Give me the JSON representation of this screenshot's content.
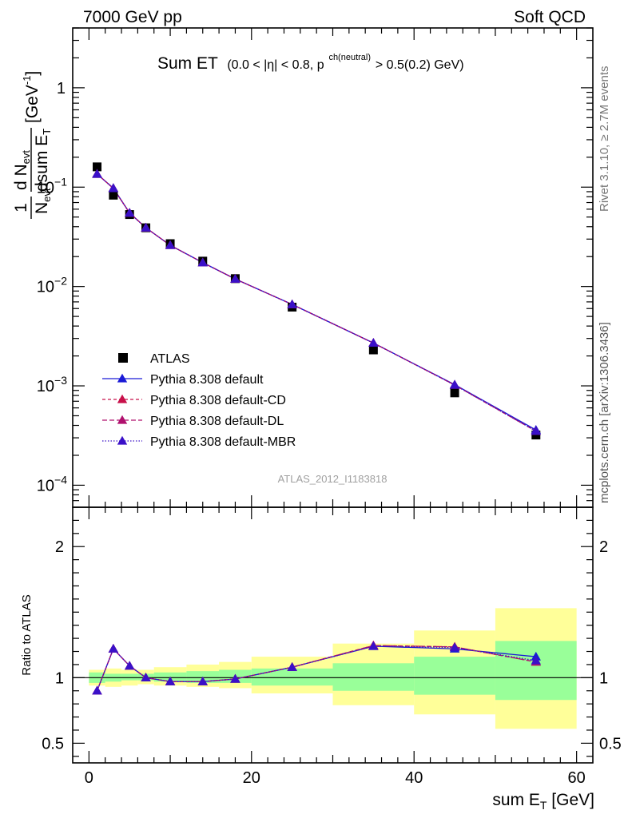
{
  "header": {
    "left": "7000 GeV pp",
    "right": "Soft QCD"
  },
  "side_labels": {
    "rivet": "Rivet 3.1.10, ≥ 2.7M events",
    "mcplots": "mcplots.cern.ch [arXiv:1306.3436]"
  },
  "plot_title": {
    "main": "Sum ET",
    "cuts_a": "(0.0 < |η| < 0.8, p",
    "cuts_sup": "ch(neutral)",
    "cuts_b": " > 0.5(0.2) GeV)"
  },
  "y_axis": {
    "frac_num_1": "1",
    "frac_den_1": "N",
    "frac_den_1_sub": "evt",
    "frac_num_2": "d N",
    "frac_num_2_sub": "evt",
    "frac_den_2": "dsum E",
    "frac_den_2_sub": "T",
    "unit": "[GeV",
    "unit_sup": "-1",
    "unit_close": "]"
  },
  "analysis_label": "ATLAS_2012_I1183818",
  "ratio_ylabel": "Ratio to ATLAS",
  "x_axis": {
    "label": "sum E",
    "label_sub": "T",
    "unit": " [GeV]"
  },
  "chart_data": [
    {
      "type": "scatter",
      "panel": "main",
      "xlabel": "sum E_T [GeV]",
      "ylabel": "1/N_evt dN_evt/dsum E_T [GeV^-1]",
      "xlim": [
        -2,
        62
      ],
      "ylim": [
        6e-05,
        4
      ],
      "y_scale": "log",
      "y_ticks": [
        {
          "value": 1,
          "label": "1"
        },
        {
          "value": 0.1,
          "base": "10",
          "exp": "−1"
        },
        {
          "value": 0.01,
          "base": "10",
          "exp": "−2"
        },
        {
          "value": 0.001,
          "base": "10",
          "exp": "−3"
        },
        {
          "value": 0.0001,
          "base": "10",
          "exp": "−4"
        }
      ],
      "legend_position": "lower-left",
      "series": [
        {
          "name": "ATLAS",
          "kind": "data",
          "color": "#000000",
          "x": [
            1,
            3,
            5,
            7,
            10,
            14,
            18,
            25,
            35,
            45,
            55
          ],
          "y": [
            0.16,
            0.083,
            0.053,
            0.039,
            0.027,
            0.018,
            0.012,
            0.0062,
            0.0023,
            0.00085,
            0.00032
          ]
        },
        {
          "name": "Pythia 8.308 default",
          "kind": "mc",
          "color": "#1a1ad6",
          "dash": "",
          "x": [
            1,
            3,
            5,
            7,
            10,
            14,
            18,
            25,
            35,
            45,
            55
          ],
          "y": [
            0.135,
            0.098,
            0.055,
            0.039,
            0.026,
            0.0174,
            0.0119,
            0.0066,
            0.0027,
            0.00103,
            0.00036
          ]
        },
        {
          "name": "Pythia 8.308 default-CD",
          "kind": "mc",
          "color": "#c8104a",
          "dash": "4,3",
          "x": [
            1,
            3,
            5,
            7,
            10,
            14,
            18,
            25,
            35,
            45,
            55
          ],
          "y": [
            0.136,
            0.097,
            0.055,
            0.039,
            0.026,
            0.0174,
            0.0119,
            0.0066,
            0.0027,
            0.00102,
            0.00035
          ]
        },
        {
          "name": "Pythia 8.308 default-DL",
          "kind": "mc",
          "color": "#b0106e",
          "dash": "6,3",
          "x": [
            1,
            3,
            5,
            7,
            10,
            14,
            18,
            25,
            35,
            45,
            55
          ],
          "y": [
            0.136,
            0.097,
            0.055,
            0.039,
            0.026,
            0.0174,
            0.0119,
            0.0066,
            0.0027,
            0.00102,
            0.00035
          ]
        },
        {
          "name": "Pythia 8.308 default-MBR",
          "kind": "mc",
          "color": "#3a10c8",
          "dash": "1.5,2",
          "x": [
            1,
            3,
            5,
            7,
            10,
            14,
            18,
            25,
            35,
            45,
            55
          ],
          "y": [
            0.136,
            0.097,
            0.055,
            0.039,
            0.026,
            0.0174,
            0.0119,
            0.0066,
            0.0027,
            0.00102,
            0.00035
          ]
        }
      ]
    },
    {
      "type": "line",
      "panel": "ratio",
      "ylabel": "Ratio to ATLAS",
      "xlabel": "sum E_T [GeV]",
      "xlim": [
        -2,
        62
      ],
      "ylim": [
        0.35,
        2.3
      ],
      "x_ticks": [
        0,
        20,
        40,
        60
      ],
      "y_ticks": [
        0.5,
        1,
        2
      ],
      "bands": {
        "bin_edges": [
          0,
          2,
          4,
          6,
          8,
          12,
          16,
          20,
          30,
          40,
          50,
          60
        ],
        "inner_color": "#99ff99",
        "outer_color": "#ffff99",
        "inner_lo": [
          0.96,
          0.97,
          0.98,
          0.98,
          0.97,
          0.96,
          0.96,
          0.94,
          0.9,
          0.87,
          0.83
        ],
        "inner_hi": [
          1.04,
          1.03,
          1.03,
          1.03,
          1.04,
          1.05,
          1.06,
          1.07,
          1.11,
          1.16,
          1.28
        ],
        "outer_lo": [
          0.94,
          0.93,
          0.94,
          0.95,
          0.94,
          0.93,
          0.92,
          0.88,
          0.79,
          0.72,
          0.61
        ],
        "outer_hi": [
          1.06,
          1.07,
          1.06,
          1.06,
          1.08,
          1.1,
          1.12,
          1.16,
          1.26,
          1.36,
          1.53
        ]
      },
      "series": [
        {
          "name": "Pythia 8.308 default",
          "color": "#1a1ad6",
          "dash": "",
          "x": [
            1,
            3,
            5,
            7,
            10,
            14,
            18,
            25,
            35,
            45,
            55
          ],
          "y": [
            0.9,
            1.22,
            1.09,
            1.0,
            0.97,
            0.97,
            0.99,
            1.08,
            1.24,
            1.22,
            1.16
          ]
        },
        {
          "name": "Pythia 8.308 default-CD",
          "color": "#c8104a",
          "dash": "4,3",
          "x": [
            1,
            3,
            5,
            7,
            10,
            14,
            18,
            25,
            35,
            45,
            55
          ],
          "y": [
            0.9,
            1.22,
            1.09,
            1.0,
            0.97,
            0.97,
            0.99,
            1.08,
            1.245,
            1.235,
            1.12
          ]
        },
        {
          "name": "Pythia 8.308 default-DL",
          "color": "#b0106e",
          "dash": "6,3",
          "x": [
            1,
            3,
            5,
            7,
            10,
            14,
            18,
            25,
            35,
            45,
            55
          ],
          "y": [
            0.9,
            1.22,
            1.09,
            1.0,
            0.97,
            0.97,
            0.99,
            1.08,
            1.245,
            1.235,
            1.12
          ]
        },
        {
          "name": "Pythia 8.308 default-MBR",
          "color": "#3a10c8",
          "dash": "1.5,2",
          "x": [
            1,
            3,
            5,
            7,
            10,
            14,
            18,
            25,
            35,
            45,
            55
          ],
          "y": [
            0.9,
            1.22,
            1.09,
            1.0,
            0.97,
            0.97,
            0.99,
            1.08,
            1.24,
            1.23,
            1.13
          ]
        }
      ]
    }
  ]
}
